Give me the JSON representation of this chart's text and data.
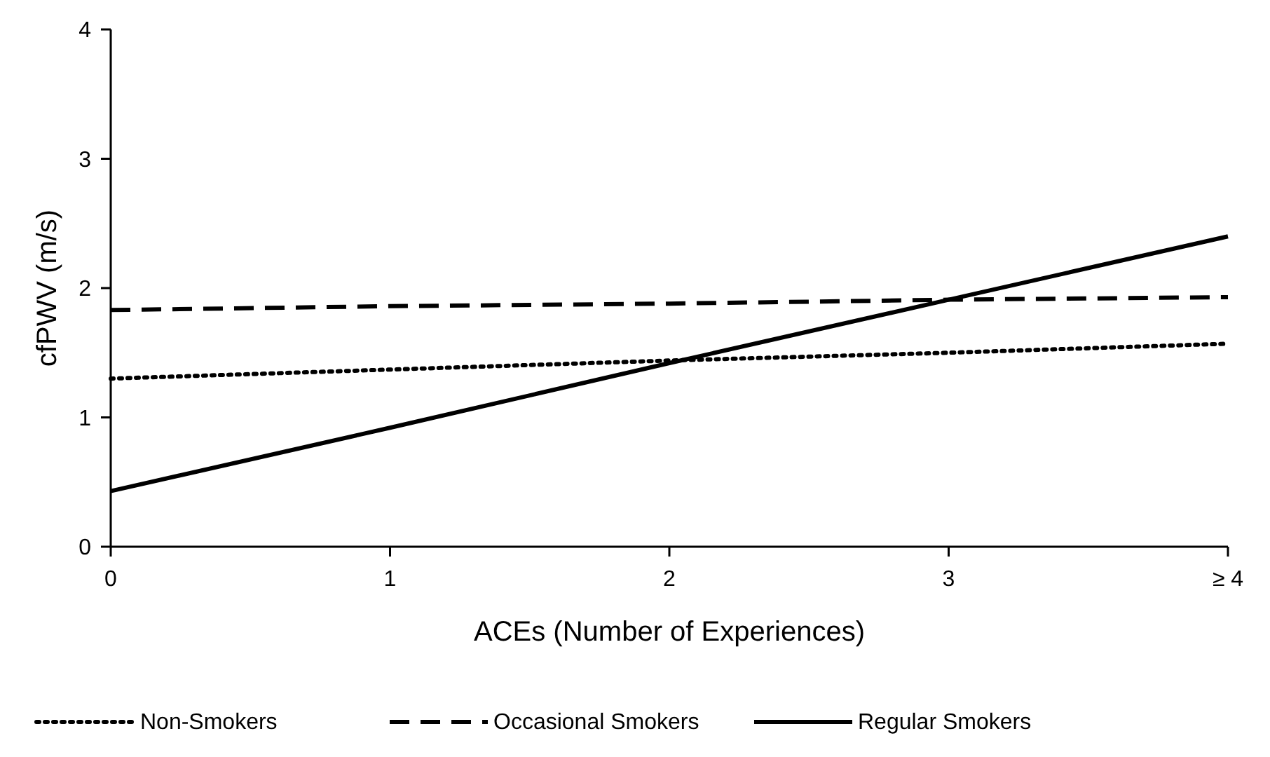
{
  "chart_data": {
    "type": "line",
    "xlabel": "ACEs (Number of Experiences)",
    "ylabel": "cfPWV (m/s)",
    "x": [
      0,
      1,
      2,
      3,
      4
    ],
    "xlim": [
      0,
      4
    ],
    "xticks": [
      0,
      1,
      2,
      3,
      {
        "value": 4,
        "label": "≥ 4"
      }
    ],
    "ylim": [
      0,
      4
    ],
    "yticks": [
      0,
      1,
      2,
      3,
      4
    ],
    "grid": false,
    "legend": "bottom",
    "marker": "none",
    "series": [
      {
        "name": "Non-Smokers",
        "color": "#000000",
        "line_style": "dotted",
        "values": [
          1.3,
          1.37,
          1.44,
          1.5,
          1.57
        ]
      },
      {
        "name": "Occasional Smokers",
        "color": "#000000",
        "line_style": "dashed",
        "values": [
          1.83,
          1.86,
          1.88,
          1.91,
          1.93
        ]
      },
      {
        "name": "Regular Smokers",
        "color": "#000000",
        "line_style": "solid",
        "values": [
          0.43,
          0.92,
          1.42,
          1.91,
          2.4
        ]
      }
    ]
  }
}
